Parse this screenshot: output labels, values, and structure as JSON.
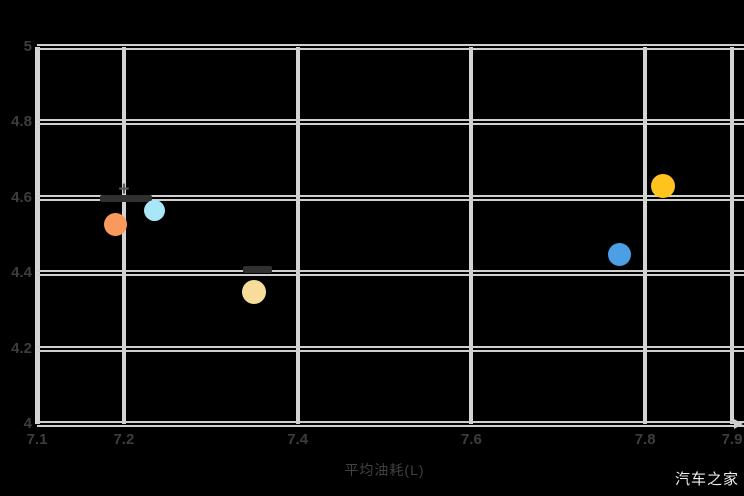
{
  "watermark": {
    "label": "汽车之家"
  },
  "chart_data": {
    "type": "scatter",
    "title": "",
    "xlabel": "平均油耗(L)",
    "ylabel": "",
    "xlim": [
      7.1,
      7.9
    ],
    "ylim": [
      4,
      5
    ],
    "grid": true,
    "legend": "none",
    "x_ticks": [
      {
        "value": 7.1,
        "label": "7.1"
      },
      {
        "value": 7.2,
        "label": "7.2"
      },
      {
        "value": 7.4,
        "label": "7.4"
      },
      {
        "value": 7.6,
        "label": "7.6"
      },
      {
        "value": 7.8,
        "label": "7.8"
      },
      {
        "value": 7.9,
        "label": "7.9"
      }
    ],
    "y_ticks": [
      {
        "value": 4,
        "label": "4"
      },
      {
        "value": 4.2,
        "label": "4.2"
      },
      {
        "value": 4.4,
        "label": "4.4"
      },
      {
        "value": 4.6,
        "label": "4.6"
      },
      {
        "value": 4.8,
        "label": "4.8"
      },
      {
        "value": 5,
        "label": "5"
      }
    ],
    "points": [
      {
        "name": "orange",
        "x": 7.19,
        "y": 4.53,
        "color": "#f99a5c",
        "size": 23
      },
      {
        "name": "light-blue",
        "x": 7.235,
        "y": 4.565,
        "color": "#a8e6f8",
        "size": 21
      },
      {
        "name": "cream",
        "x": 7.35,
        "y": 4.35,
        "color": "#f8dd9a",
        "size": 24
      },
      {
        "name": "blue",
        "x": 7.77,
        "y": 4.45,
        "color": "#4c9fe5",
        "size": 23
      },
      {
        "name": "gold",
        "x": 7.82,
        "y": 4.63,
        "color": "#ffc31e",
        "size": 24
      }
    ],
    "annotations": [
      {
        "kind": "plus-marker",
        "x": 7.2,
        "y": 4.62,
        "glyph": "+"
      },
      {
        "kind": "illegible-label",
        "x_start": 7.172,
        "x_end": 7.232,
        "y": 4.6
      },
      {
        "kind": "illegible-label",
        "x_start": 7.337,
        "x_end": 7.37,
        "y": 4.41
      }
    ],
    "colors": {
      "background": "#000000",
      "grid": "#cfcfcf",
      "tick_label": "#3d3d3d",
      "axis_title": "#414141",
      "watermark": "#ebebeb"
    }
  }
}
